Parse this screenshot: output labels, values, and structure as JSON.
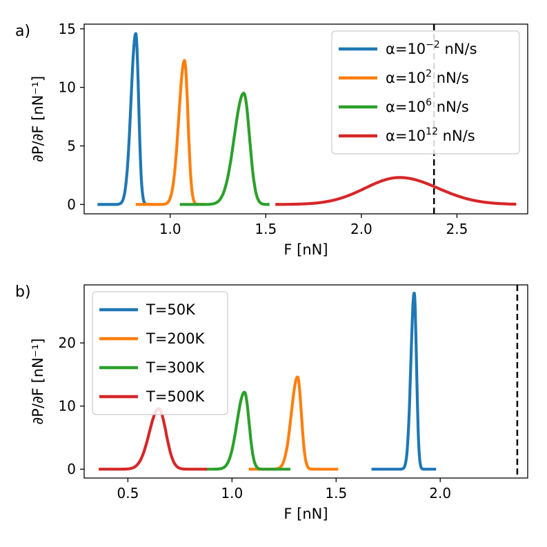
{
  "chart_data": [
    {
      "type": "line",
      "panel_label": "a)",
      "xlabel": "F [nN]",
      "ylabel": "∂P/∂F [nN⁻¹]",
      "xlim": [
        0.55,
        2.87
      ],
      "ylim": [
        -0.8,
        15.4
      ],
      "xticks": [
        1.0,
        1.5,
        2.0,
        2.5
      ],
      "xtick_labels": [
        "1.0",
        "1.5",
        "2.0",
        "2.5"
      ],
      "yticks": [
        0,
        5,
        10,
        15
      ],
      "ytick_labels": [
        "0",
        "5",
        "10",
        "15"
      ],
      "vline": 2.38,
      "grid": false,
      "legend_position": "top-right",
      "series": [
        {
          "legend": {
            "prefix": "α=10",
            "sup": "−2",
            "suffix": " nN/s"
          },
          "color": "#1f77b4",
          "peak_x": 0.82,
          "peak_y": 14.6,
          "sigma_left": 0.025,
          "sigma_right": 0.015,
          "x_range": [
            0.62,
            0.91
          ]
        },
        {
          "legend": {
            "prefix": "α=10",
            "sup": "2",
            "suffix": " nN/s"
          },
          "color": "#ff7f0e",
          "peak_x": 1.075,
          "peak_y": 12.3,
          "sigma_left": 0.03,
          "sigma_right": 0.018,
          "x_range": [
            0.82,
            1.18
          ]
        },
        {
          "legend": {
            "prefix": "α=10",
            "sup": "6",
            "suffix": " nN/s"
          },
          "color": "#2ca02c",
          "peak_x": 1.385,
          "peak_y": 9.5,
          "sigma_left": 0.05,
          "sigma_right": 0.03,
          "x_range": [
            1.05,
            1.52
          ]
        },
        {
          "legend": {
            "prefix": "α=10",
            "sup": "12",
            "suffix": " nN/s"
          },
          "color": "#d62728",
          "peak_x": 2.2,
          "peak_y": 2.3,
          "sigma_left": 0.18,
          "sigma_right": 0.2,
          "x_range": [
            1.55,
            2.81
          ]
        }
      ]
    },
    {
      "type": "line",
      "panel_label": "b)",
      "xlabel": "F [nN]",
      "ylabel": "∂P/∂F [nN⁻¹]",
      "xlim": [
        0.29,
        2.42
      ],
      "ylim": [
        -1.4,
        29.2
      ],
      "xticks": [
        0.5,
        1.0,
        1.5,
        2.0
      ],
      "xtick_labels": [
        "0.5",
        "1.0",
        "1.5",
        "2.0"
      ],
      "yticks": [
        0,
        10,
        20
      ],
      "ytick_labels": [
        "0",
        "10",
        "20"
      ],
      "vline": 2.37,
      "grid": false,
      "legend_position": "top-left",
      "series": [
        {
          "legend": {
            "prefix": "T=50K",
            "sup": "",
            "suffix": ""
          },
          "color": "#1f77b4",
          "peak_x": 1.875,
          "peak_y": 27.9,
          "sigma_left": 0.016,
          "sigma_right": 0.011,
          "x_range": [
            1.67,
            1.98
          ]
        },
        {
          "legend": {
            "prefix": "T=200K",
            "sup": "",
            "suffix": ""
          },
          "color": "#ff7f0e",
          "peak_x": 1.315,
          "peak_y": 14.6,
          "sigma_left": 0.03,
          "sigma_right": 0.018,
          "x_range": [
            1.08,
            1.51
          ]
        },
        {
          "legend": {
            "prefix": "T=300K",
            "sup": "",
            "suffix": ""
          },
          "color": "#2ca02c",
          "peak_x": 1.06,
          "peak_y": 12.2,
          "sigma_left": 0.036,
          "sigma_right": 0.022,
          "x_range": [
            0.87,
            1.28
          ]
        },
        {
          "legend": {
            "prefix": "T=500K",
            "sup": "",
            "suffix": ""
          },
          "color": "#d62728",
          "peak_x": 0.648,
          "peak_y": 9.6,
          "sigma_left": 0.045,
          "sigma_right": 0.035,
          "x_range": [
            0.36,
            0.88
          ]
        }
      ]
    }
  ]
}
